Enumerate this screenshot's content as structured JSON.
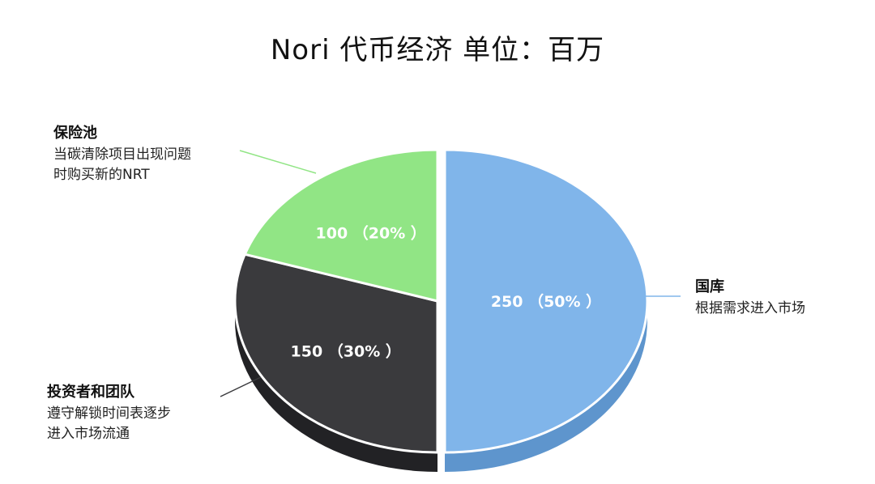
{
  "chart_data": {
    "type": "pie",
    "title": "Nori 代币经济 单位：百万",
    "categories": [
      "国库",
      "投资者和团队",
      "保险池"
    ],
    "values": [
      250,
      150,
      100
    ],
    "percents": [
      "50%",
      "30%",
      "20%"
    ],
    "data_labels": [
      "250 （50% ）",
      "150 （30% ）",
      "100 （20% ）"
    ],
    "colors": {
      "top": [
        "#80B5EA",
        "#3A3A3D",
        "#91E585"
      ],
      "side": [
        "#5E95CD",
        "#222225",
        "#6CBF62"
      ]
    },
    "exploded": [
      true,
      false,
      false
    ],
    "style": "3d-oval",
    "legend": "none",
    "annotations": [
      {
        "title": "国库",
        "lines": [
          "根据需求进入市场"
        ],
        "line_color": "#80B5EA"
      },
      {
        "title": "投资者和团队",
        "lines": [
          "遵守解锁时间表逐步",
          "进入市场流通"
        ],
        "line_color": "#3A3A3D"
      },
      {
        "title": "保险池",
        "lines": [
          "当碳清除项目出现问题",
          "时购买新的NRT"
        ],
        "line_color": "#91E585"
      }
    ]
  }
}
